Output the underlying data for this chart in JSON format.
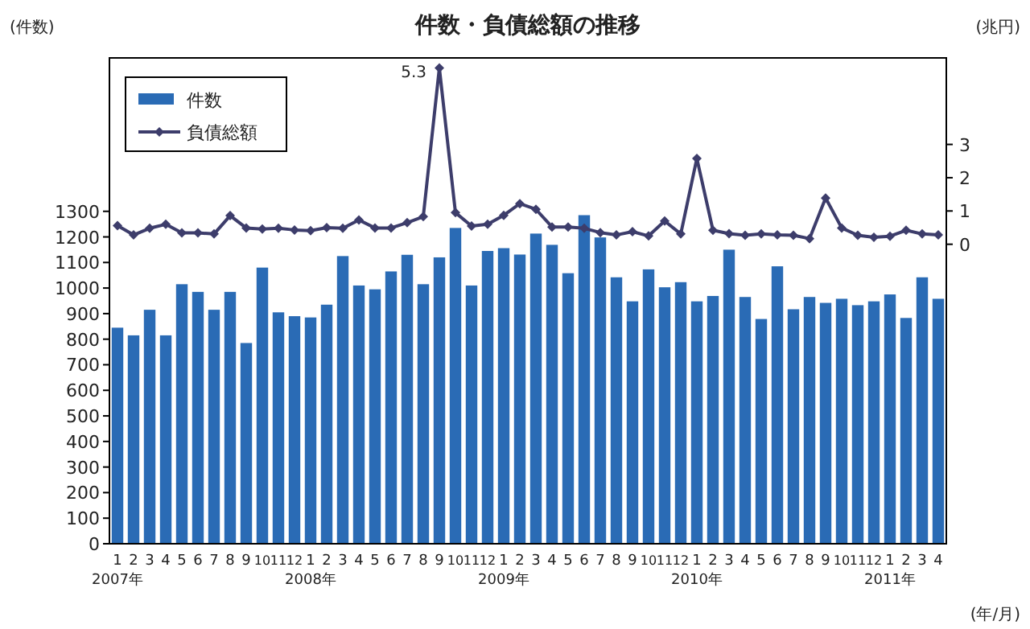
{
  "chart_data": {
    "type": "bar",
    "title": "件数・負債総額の推移",
    "ylabel": "(件数)",
    "y2label": "(兆円)",
    "xlabel": "(年/月)",
    "categories": [
      "1\n2007年",
      "2",
      "3",
      "4",
      "5",
      "6",
      "7",
      "8",
      "9",
      "10",
      "11",
      "12",
      "1\n2008年",
      "2",
      "3",
      "4",
      "5",
      "6",
      "7",
      "8",
      "9",
      "10",
      "11",
      "12",
      "1\n2009年",
      "2",
      "3",
      "4",
      "5",
      "6",
      "7",
      "8",
      "9",
      "10",
      "11",
      "12",
      "1\n2010年",
      "2",
      "3",
      "4",
      "5",
      "6",
      "7",
      "8",
      "9",
      "10",
      "11",
      "12",
      "1\n2011年",
      "2",
      "3",
      "4"
    ],
    "series": [
      {
        "name": "件数",
        "color": "#2a6bb5",
        "values": [
          845,
          815,
          915,
          815,
          1015,
          985,
          915,
          985,
          785,
          1080,
          905,
          890,
          885,
          935,
          1125,
          1010,
          995,
          1065,
          1130,
          1015,
          1120,
          1235,
          1010,
          1145,
          1156,
          1131,
          1213,
          1169,
          1058,
          1285,
          1198,
          1042,
          948,
          1073,
          1003,
          1023,
          948,
          969,
          1150,
          965,
          879,
          1085,
          917,
          965,
          942,
          958,
          933,
          948,
          975,
          883,
          1042,
          958
        ]
      },
      {
        "name": "負債総額",
        "type": "line",
        "axis": "y2",
        "color": "#3d3d6b",
        "marker": "diamond",
        "values": [
          0.56,
          0.28,
          0.48,
          0.6,
          0.34,
          0.34,
          0.31,
          0.86,
          0.49,
          0.46,
          0.48,
          0.43,
          0.41,
          0.5,
          0.48,
          0.73,
          0.49,
          0.49,
          0.65,
          0.83,
          5.3,
          0.95,
          0.55,
          0.6,
          0.87,
          1.22,
          1.05,
          0.52,
          0.52,
          0.48,
          0.35,
          0.28,
          0.38,
          0.25,
          0.7,
          0.31,
          2.58,
          0.42,
          0.32,
          0.27,
          0.31,
          0.28,
          0.27,
          0.17,
          1.39,
          0.49,
          0.27,
          0.21,
          0.24,
          0.42,
          0.31,
          0.28
        ],
        "value_labels": [
          null,
          null,
          null,
          null,
          null,
          null,
          null,
          null,
          null,
          null,
          null,
          null,
          null,
          null,
          null,
          null,
          null,
          null,
          null,
          null,
          "5.3",
          null,
          null,
          null,
          null,
          null,
          null,
          null,
          null,
          null,
          null,
          null,
          null,
          null,
          null,
          null,
          null,
          null,
          null,
          null,
          null,
          null,
          null,
          null,
          null,
          null,
          null,
          null,
          null,
          null,
          null,
          null
        ]
      }
    ],
    "ylim": [
      0,
      1900
    ],
    "yticks": [
      0,
      100,
      200,
      300,
      400,
      500,
      600,
      700,
      800,
      900,
      1000,
      1100,
      1200,
      1300
    ],
    "y2lim": [
      -9,
      5.6
    ],
    "y2ticks": [
      0,
      1,
      2,
      3
    ],
    "legend": "top left",
    "grid": false
  }
}
